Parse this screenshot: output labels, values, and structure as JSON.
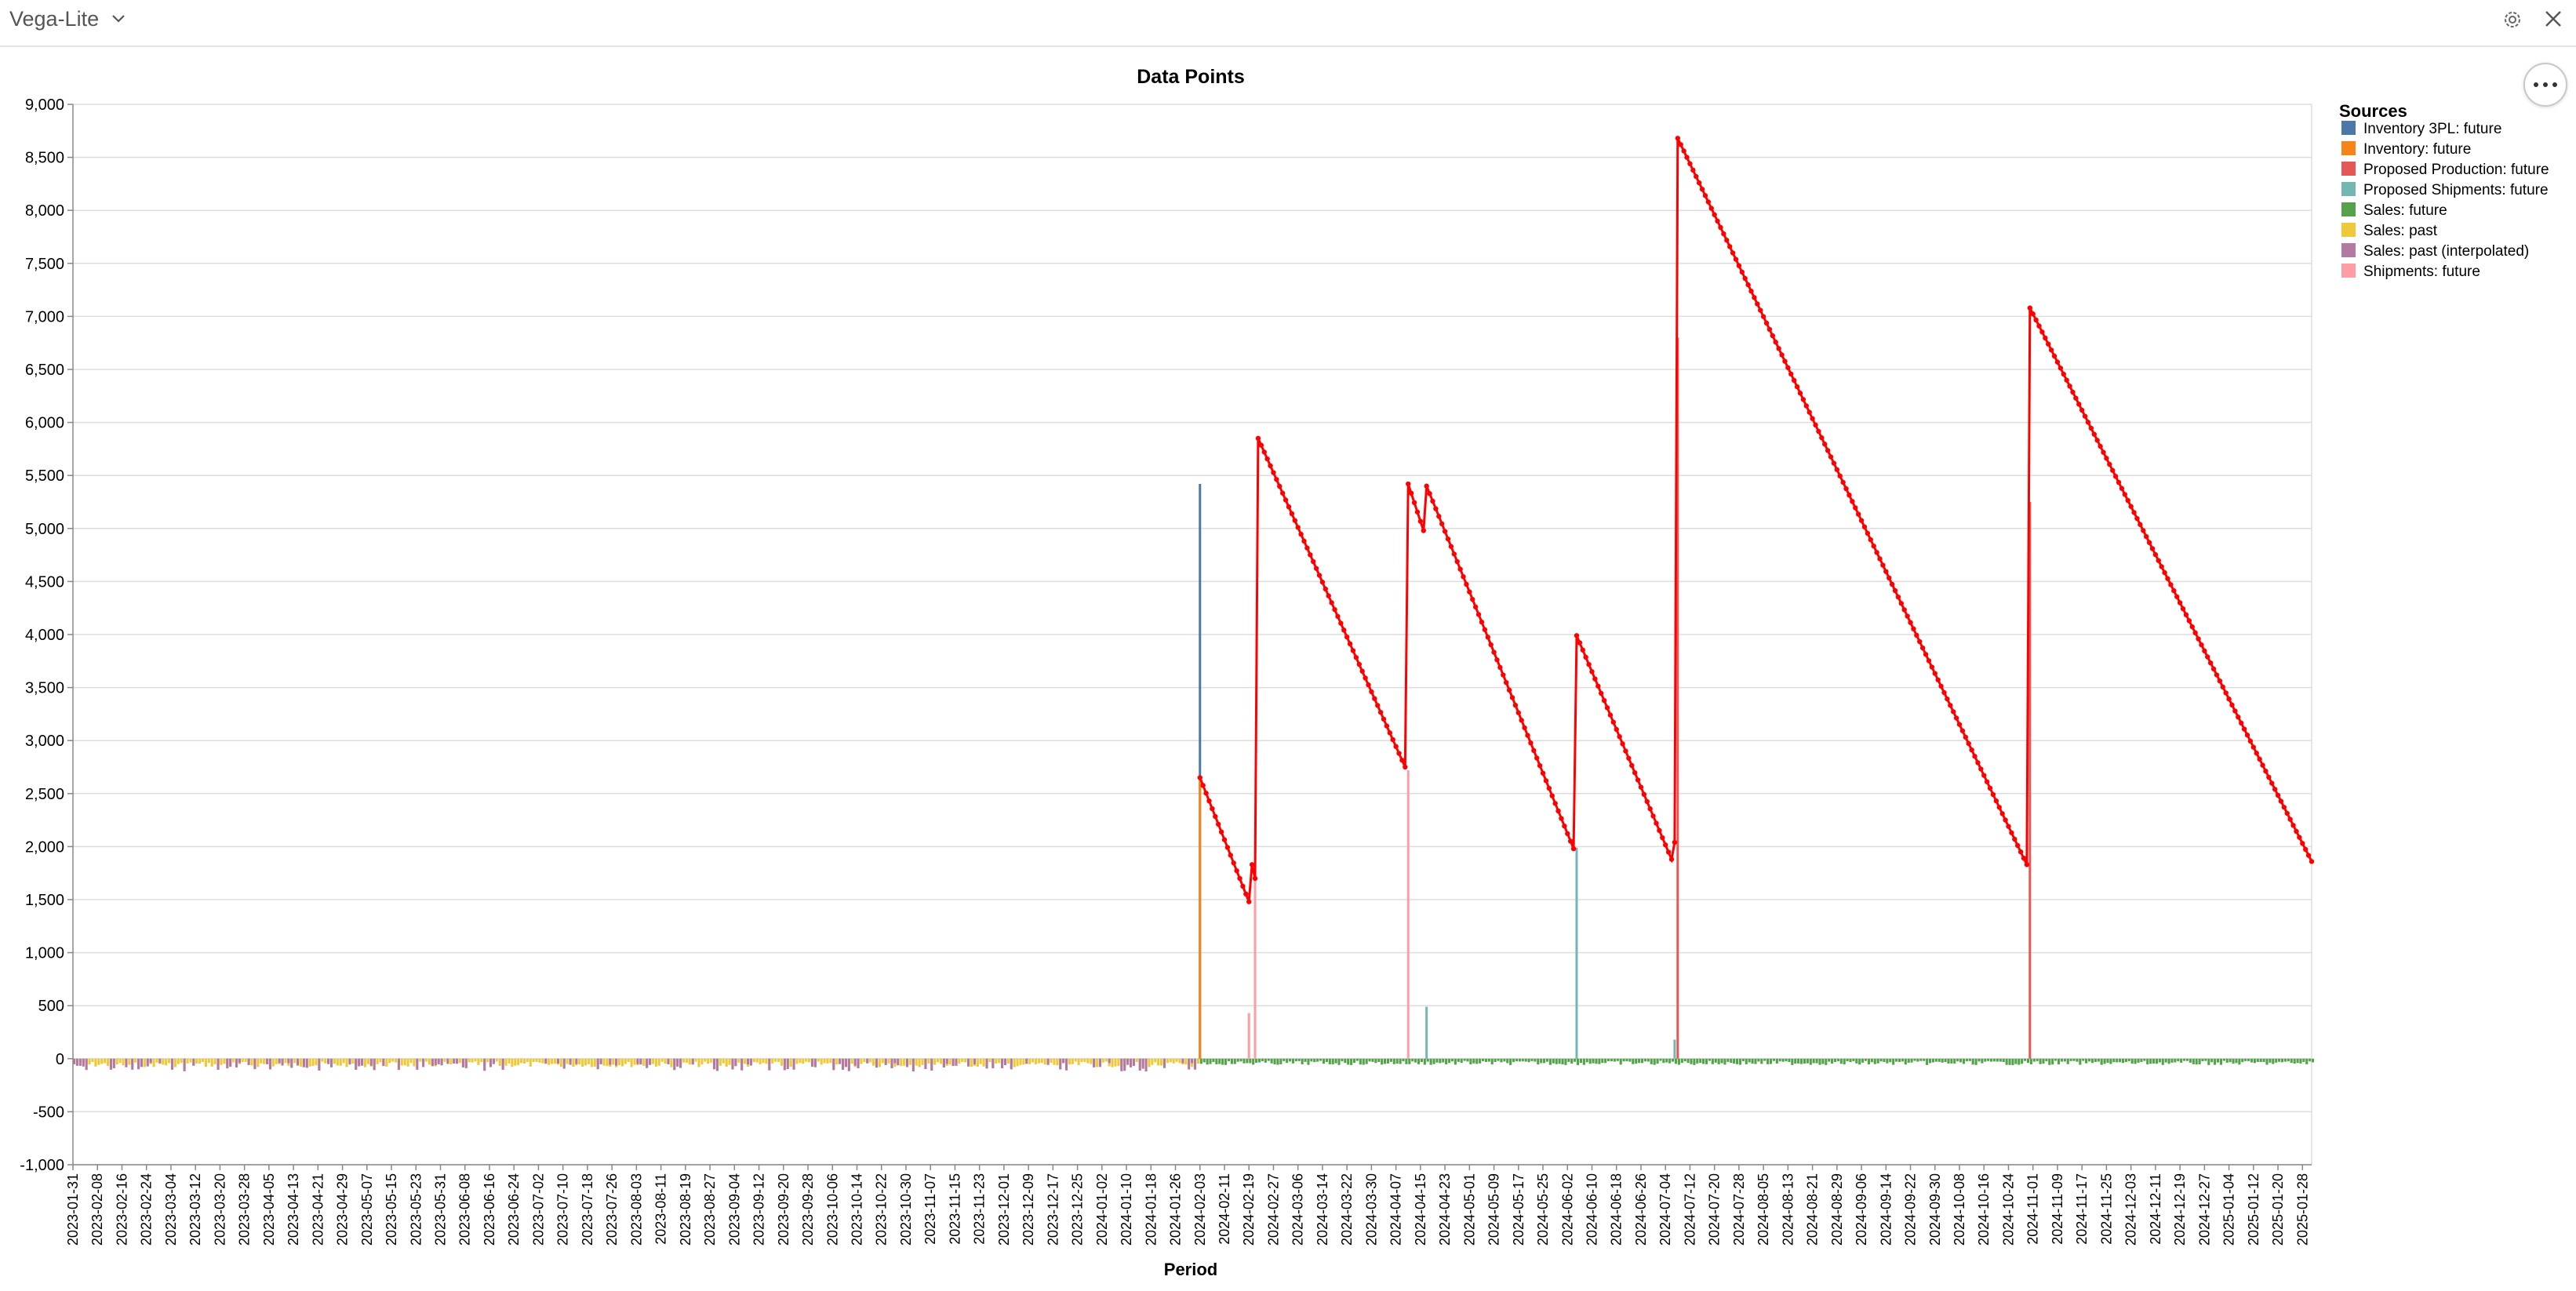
{
  "app": {
    "title": "Vega-Lite"
  },
  "icons": {
    "dropdown": "chevron-down-icon",
    "settings": "gear-icon",
    "close": "close-icon",
    "menu": "more-horizontal-icon"
  },
  "chart_data": {
    "type": "bar+line",
    "title": "Data Points",
    "xlabel": "Period",
    "ylabel": "",
    "ylim": [
      -1000,
      9000
    ],
    "xlim": [
      "2023-01-31",
      "2025-01-31"
    ],
    "yticks": [
      "-1,000",
      "-500",
      "0",
      "500",
      "1,000",
      "1,500",
      "2,000",
      "2,500",
      "3,000",
      "3,500",
      "4,000",
      "4,500",
      "5,000",
      "5,500",
      "6,000",
      "6,500",
      "7,000",
      "7,500",
      "8,000",
      "8,500",
      "9,000"
    ],
    "xticks": [
      "2023-01-31",
      "2023-02-08",
      "2023-02-16",
      "2023-02-24",
      "2023-03-04",
      "2023-03-12",
      "2023-03-20",
      "2023-03-28",
      "2023-04-05",
      "2023-04-13",
      "2023-04-21",
      "2023-04-29",
      "2023-05-07",
      "2023-05-15",
      "2023-05-23",
      "2023-05-31",
      "2023-06-08",
      "2023-06-16",
      "2023-06-24",
      "2023-07-02",
      "2023-07-10",
      "2023-07-18",
      "2023-07-26",
      "2023-08-03",
      "2023-08-11",
      "2023-08-19",
      "2023-08-27",
      "2023-09-04",
      "2023-09-12",
      "2023-09-20",
      "2023-09-28",
      "2023-10-06",
      "2023-10-14",
      "2023-10-22",
      "2023-10-30",
      "2023-11-07",
      "2023-11-15",
      "2023-11-23",
      "2023-12-01",
      "2023-12-09",
      "2023-12-17",
      "2023-12-25",
      "2024-01-02",
      "2024-01-10",
      "2024-01-18",
      "2024-01-26",
      "2024-02-03",
      "2024-02-11",
      "2024-02-19",
      "2024-02-27",
      "2024-03-06",
      "2024-03-14",
      "2024-03-22",
      "2024-03-30",
      "2024-04-07",
      "2024-04-15",
      "2024-04-23",
      "2024-05-01",
      "2024-05-09",
      "2024-05-17",
      "2024-05-25",
      "2024-06-02",
      "2024-06-10",
      "2024-06-18",
      "2024-06-26",
      "2024-07-04",
      "2024-07-12",
      "2024-07-20",
      "2024-07-28",
      "2024-08-05",
      "2024-08-13",
      "2024-08-21",
      "2024-08-29",
      "2024-09-06",
      "2024-09-14",
      "2024-09-22",
      "2024-09-30",
      "2024-10-08",
      "2024-10-16",
      "2024-10-24",
      "2024-11-01",
      "2024-11-09",
      "2024-11-17",
      "2024-11-25",
      "2024-12-03",
      "2024-12-11",
      "2024-12-19",
      "2024-12-27",
      "2025-01-04",
      "2025-01-12",
      "2025-01-20",
      "2025-01-28"
    ],
    "legend": {
      "title": "Sources",
      "placement": "top-right",
      "entries": [
        {
          "name": "Inventory 3PL: future",
          "color": "#4c78a8"
        },
        {
          "name": "Inventory: future",
          "color": "#f58518"
        },
        {
          "name": "Proposed Production: future",
          "color": "#e45756"
        },
        {
          "name": "Proposed Shipments: future",
          "color": "#72b7b2"
        },
        {
          "name": "Sales: future",
          "color": "#54a24b"
        },
        {
          "name": "Sales: past",
          "color": "#eeca3b"
        },
        {
          "name": "Sales: past (interpolated)",
          "color": "#b279a2"
        },
        {
          "name": "Shipments: future",
          "color": "#ff9da6"
        }
      ]
    },
    "bars": [
      {
        "series": "Inventory 3PL: future",
        "x": "2024-02-03",
        "y": 5420
      },
      {
        "series": "Inventory: future",
        "x": "2024-02-03",
        "y": 2650
      },
      {
        "series": "Shipments: future",
        "x": "2024-02-19",
        "y": 430
      },
      {
        "series": "Shipments: future",
        "x": "2024-02-21",
        "y": 1800
      },
      {
        "series": "Shipments: future",
        "x": "2024-04-11",
        "y": 2720
      },
      {
        "series": "Proposed Shipments: future",
        "x": "2024-04-17",
        "y": 490
      },
      {
        "series": "Proposed Shipments: future",
        "x": "2024-06-05",
        "y": 1990
      },
      {
        "series": "Proposed Shipments: future",
        "x": "2024-07-07",
        "y": 180
      },
      {
        "series": "Proposed Production: future",
        "x": "2024-07-08",
        "y": 6800
      },
      {
        "series": "Proposed Production: future",
        "x": "2024-10-31",
        "y": 5250
      }
    ],
    "sales_bands": [
      {
        "series": "Sales: past",
        "from": "2023-01-31",
        "to": "2024-02-02",
        "approx_value": -60
      },
      {
        "series": "Sales: past (interpolated)",
        "from": "2023-01-31",
        "to": "2024-02-02",
        "approx_value": -90
      },
      {
        "series": "Sales: future",
        "from": "2024-02-03",
        "to": "2025-01-31",
        "approx_value": -45
      }
    ],
    "inventory_line": {
      "name": "Inventory projection",
      "color": "#ff0000",
      "points": [
        [
          "2024-02-03",
          2650
        ],
        [
          "2024-02-19",
          1480
        ],
        [
          "2024-02-20",
          1830
        ],
        [
          "2024-02-21",
          1700
        ],
        [
          "2024-02-22",
          5850
        ],
        [
          "2024-04-10",
          2750
        ],
        [
          "2024-04-11",
          5420
        ],
        [
          "2024-04-16",
          4980
        ],
        [
          "2024-04-17",
          5400
        ],
        [
          "2024-06-04",
          1980
        ],
        [
          "2024-06-05",
          3990
        ],
        [
          "2024-07-06",
          1880
        ],
        [
          "2024-07-07",
          2040
        ],
        [
          "2024-07-08",
          8680
        ],
        [
          "2024-10-30",
          1830
        ],
        [
          "2024-10-31",
          7080
        ],
        [
          "2025-01-31",
          1860
        ]
      ]
    }
  }
}
